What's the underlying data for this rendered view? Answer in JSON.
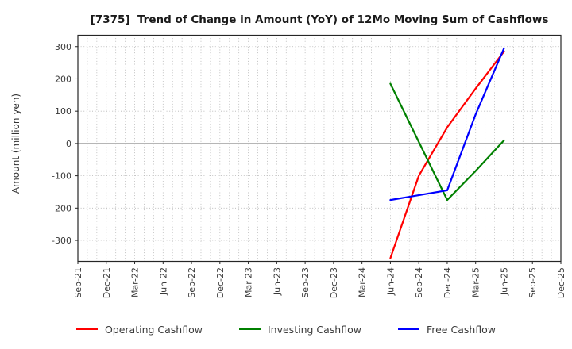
{
  "chart_data": {
    "type": "line",
    "title": "[7375]  Trend of Change in Amount (YoY) of 12Mo Moving Sum of Cashflows",
    "ylabel": "Amount (million yen)",
    "xlabel": "",
    "ylim": [
      -365,
      335
    ],
    "y_ticks": [
      300,
      200,
      100,
      0,
      -100,
      -200,
      -300
    ],
    "x_tick_labels": [
      "Sep-21",
      "Dec-21",
      "Mar-22",
      "Jun-22",
      "Sep-22",
      "Dec-22",
      "Mar-23",
      "Jun-23",
      "Sep-23",
      "Dec-23",
      "Mar-24",
      "Jun-24",
      "Sep-24",
      "Dec-24",
      "Mar-25",
      "Jun-25",
      "Sep-25",
      "Dec-25"
    ],
    "grid": {
      "style": "dotted",
      "x_minor": "monthly",
      "y_interval": 100,
      "zero_line": "solid"
    },
    "legend_position": "bottom-center",
    "series": [
      {
        "name": "Operating Cashflow",
        "color": "#ff0000",
        "points": [
          {
            "x": "Jun-24",
            "y": -355
          },
          {
            "x": "Sep-24",
            "y": -100
          },
          {
            "x": "Dec-24",
            "y": 50
          },
          {
            "x": "Mar-25",
            "y": 170
          },
          {
            "x": "Jun-25",
            "y": 285
          }
        ]
      },
      {
        "name": "Investing Cashflow",
        "color": "#008000",
        "points": [
          {
            "x": "Jun-24",
            "y": 185
          },
          {
            "x": "Sep-24",
            "y": 5
          },
          {
            "x": "Dec-24",
            "y": -175
          },
          {
            "x": "Mar-25",
            "y": -85
          },
          {
            "x": "Jun-25",
            "y": 10
          }
        ]
      },
      {
        "name": "Free Cashflow",
        "color": "#0000ff",
        "points": [
          {
            "x": "Jun-24",
            "y": -175
          },
          {
            "x": "Sep-24",
            "y": -160
          },
          {
            "x": "Dec-24",
            "y": -145
          },
          {
            "x": "Mar-25",
            "y": 90
          },
          {
            "x": "Jun-25",
            "y": 295
          }
        ]
      }
    ]
  }
}
